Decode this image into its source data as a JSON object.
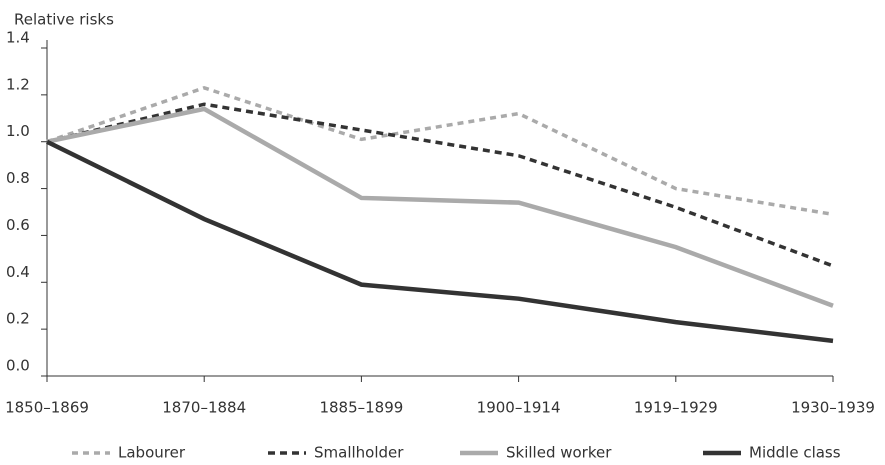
{
  "chart_data": {
    "type": "line",
    "y_label": "Relative risks",
    "categories": [
      "1850–1869",
      "1870–1884",
      "1885–1899",
      "1900–1914",
      "1919–1929",
      "1930–1939"
    ],
    "series": [
      {
        "name": "Labourer",
        "color": "#aaaaaa",
        "dash": "dotted",
        "values": [
          1.0,
          1.23,
          1.01,
          1.12,
          0.8,
          0.69
        ]
      },
      {
        "name": "Smallholder",
        "color": "#333333",
        "dash": "dashed",
        "values": [
          1.0,
          1.16,
          1.05,
          0.94,
          0.72,
          0.47
        ]
      },
      {
        "name": "Skilled worker",
        "color": "#aaaaaa",
        "dash": "solid",
        "values": [
          1.0,
          1.14,
          0.76,
          0.74,
          0.55,
          0.3
        ]
      },
      {
        "name": "Middle class",
        "color": "#333333",
        "dash": "solid",
        "values": [
          1.0,
          0.67,
          0.39,
          0.33,
          0.23,
          0.15
        ]
      }
    ],
    "ylim": [
      0,
      1.4
    ],
    "yticks": [
      {
        "value": 0,
        "label": "0.0"
      },
      0.2,
      0.4,
      0.6,
      0.8,
      {
        "value": 1,
        "label": "1.0"
      },
      1.2,
      1.4
    ],
    "grid": false,
    "legend": "bottom"
  }
}
